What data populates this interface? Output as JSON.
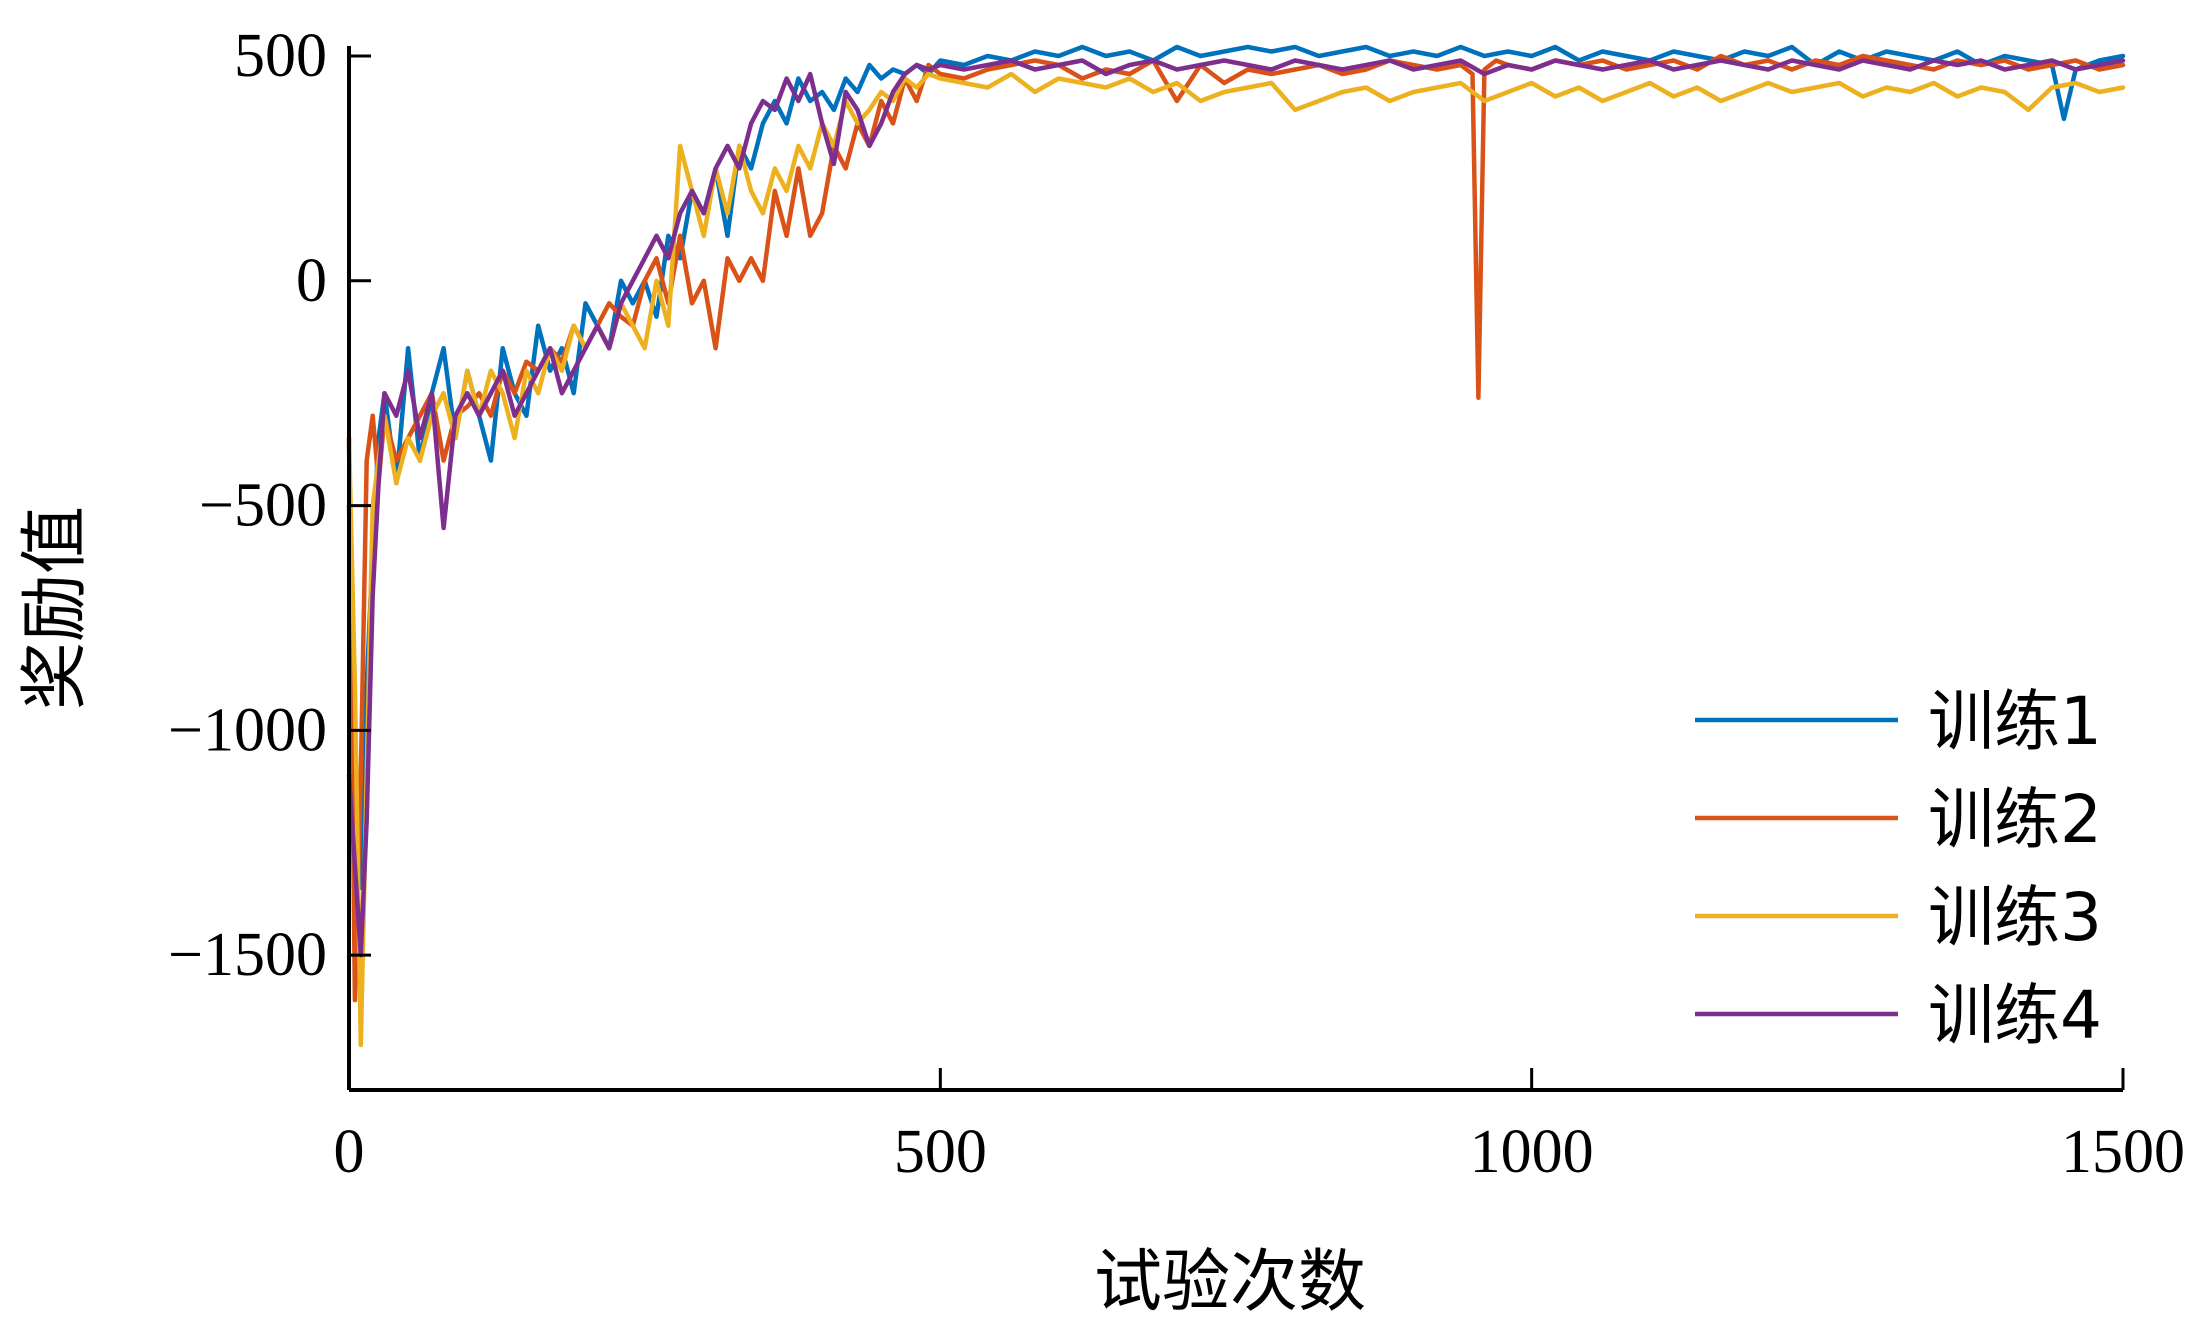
{
  "chart_data": {
    "type": "line",
    "title": "",
    "xlabel": "试验次数",
    "ylabel": "奖励值",
    "xlim": [
      0,
      1500
    ],
    "ylim": [
      -1800,
      500
    ],
    "xticks": [
      0,
      500,
      1000,
      1500
    ],
    "xtick_labels": [
      "0",
      "500",
      "1000",
      "1500"
    ],
    "yticks": [
      500,
      0,
      -500,
      -1000,
      -1500
    ],
    "ytick_labels": [
      "500",
      "0",
      "−500",
      "−1000",
      "−1500"
    ],
    "grid": false,
    "legend_position": "bottom-right",
    "series": [
      {
        "name": "训练1",
        "color": "#0072BD",
        "x": [
          0,
          5,
          10,
          15,
          20,
          25,
          30,
          40,
          50,
          60,
          70,
          80,
          90,
          100,
          110,
          120,
          130,
          140,
          150,
          160,
          170,
          180,
          190,
          200,
          210,
          220,
          230,
          240,
          250,
          260,
          270,
          280,
          290,
          300,
          310,
          320,
          330,
          340,
          350,
          360,
          370,
          380,
          390,
          400,
          410,
          420,
          430,
          440,
          450,
          460,
          470,
          480,
          490,
          500,
          520,
          540,
          560,
          580,
          600,
          620,
          640,
          660,
          680,
          700,
          720,
          740,
          760,
          780,
          800,
          820,
          840,
          860,
          880,
          900,
          920,
          940,
          960,
          980,
          1000,
          1020,
          1040,
          1060,
          1080,
          1100,
          1120,
          1140,
          1160,
          1180,
          1200,
          1220,
          1240,
          1260,
          1280,
          1300,
          1320,
          1340,
          1360,
          1380,
          1400,
          1420,
          1440,
          1450,
          1460,
          1480,
          1500
        ],
        "y": [
          -500,
          -1100,
          -1350,
          -900,
          -600,
          -350,
          -250,
          -450,
          -150,
          -400,
          -250,
          -150,
          -350,
          -200,
          -300,
          -400,
          -150,
          -250,
          -300,
          -100,
          -200,
          -150,
          -250,
          -50,
          -100,
          -150,
          0,
          -50,
          0,
          -80,
          100,
          50,
          200,
          150,
          250,
          100,
          300,
          250,
          350,
          400,
          350,
          450,
          400,
          420,
          380,
          450,
          420,
          480,
          450,
          470,
          460,
          480,
          460,
          490,
          480,
          500,
          490,
          510,
          500,
          520,
          500,
          510,
          490,
          520,
          500,
          510,
          520,
          510,
          520,
          500,
          510,
          520,
          500,
          510,
          500,
          520,
          500,
          510,
          500,
          520,
          490,
          510,
          500,
          490,
          510,
          500,
          490,
          510,
          500,
          520,
          480,
          510,
          490,
          510,
          500,
          490,
          510,
          480,
          500,
          490,
          480,
          360,
          470,
          490,
          500
        ]
      },
      {
        "name": "训练2",
        "color": "#D95319",
        "x": [
          0,
          5,
          10,
          15,
          20,
          25,
          30,
          40,
          50,
          60,
          70,
          80,
          90,
          100,
          110,
          120,
          130,
          140,
          150,
          160,
          170,
          180,
          190,
          200,
          210,
          220,
          230,
          240,
          250,
          260,
          270,
          280,
          290,
          300,
          310,
          320,
          330,
          340,
          350,
          360,
          370,
          380,
          390,
          400,
          410,
          420,
          430,
          440,
          450,
          460,
          470,
          480,
          490,
          500,
          520,
          540,
          560,
          580,
          600,
          620,
          640,
          660,
          680,
          700,
          720,
          740,
          760,
          780,
          800,
          820,
          840,
          860,
          880,
          900,
          920,
          940,
          950,
          955,
          960,
          965,
          970,
          980,
          1000,
          1020,
          1040,
          1060,
          1080,
          1100,
          1120,
          1140,
          1160,
          1180,
          1200,
          1220,
          1240,
          1260,
          1280,
          1300,
          1320,
          1340,
          1360,
          1380,
          1400,
          1420,
          1440,
          1460,
          1480,
          1500
        ],
        "y": [
          -350,
          -1600,
          -1100,
          -400,
          -300,
          -450,
          -300,
          -400,
          -350,
          -300,
          -250,
          -400,
          -300,
          -280,
          -250,
          -300,
          -200,
          -250,
          -180,
          -200,
          -150,
          -180,
          -100,
          -150,
          -100,
          -50,
          -80,
          -100,
          0,
          50,
          -50,
          100,
          -50,
          0,
          -150,
          50,
          0,
          50,
          0,
          200,
          100,
          250,
          100,
          150,
          300,
          250,
          350,
          300,
          400,
          350,
          450,
          400,
          480,
          460,
          450,
          470,
          480,
          490,
          480,
          450,
          470,
          460,
          490,
          400,
          480,
          440,
          470,
          460,
          470,
          480,
          460,
          470,
          490,
          480,
          470,
          480,
          460,
          -260,
          470,
          480,
          490,
          480,
          470,
          490,
          480,
          490,
          470,
          480,
          490,
          470,
          500,
          480,
          490,
          470,
          490,
          480,
          500,
          490,
          480,
          470,
          490,
          480,
          490,
          470,
          480,
          490,
          470,
          480
        ]
      },
      {
        "name": "训练3",
        "color": "#EDB120",
        "x": [
          0,
          5,
          10,
          15,
          20,
          25,
          30,
          40,
          50,
          60,
          70,
          80,
          90,
          100,
          110,
          120,
          130,
          140,
          150,
          160,
          170,
          180,
          190,
          200,
          210,
          220,
          230,
          240,
          250,
          260,
          270,
          280,
          290,
          300,
          310,
          320,
          330,
          340,
          350,
          360,
          370,
          380,
          390,
          400,
          410,
          420,
          430,
          440,
          450,
          460,
          470,
          480,
          490,
          500,
          520,
          540,
          560,
          580,
          600,
          620,
          640,
          660,
          680,
          700,
          720,
          740,
          760,
          780,
          800,
          820,
          840,
          860,
          880,
          900,
          920,
          940,
          960,
          980,
          1000,
          1020,
          1040,
          1060,
          1080,
          1100,
          1120,
          1140,
          1160,
          1180,
          1200,
          1220,
          1240,
          1260,
          1280,
          1300,
          1320,
          1340,
          1360,
          1380,
          1400,
          1420,
          1440,
          1460,
          1480,
          1500
        ],
        "y": [
          -350,
          -900,
          -1700,
          -1100,
          -500,
          -400,
          -300,
          -450,
          -350,
          -400,
          -300,
          -250,
          -350,
          -200,
          -300,
          -200,
          -250,
          -350,
          -200,
          -250,
          -150,
          -200,
          -100,
          -150,
          -100,
          -150,
          -50,
          -100,
          -150,
          0,
          -100,
          300,
          200,
          100,
          250,
          150,
          300,
          200,
          150,
          250,
          200,
          300,
          250,
          350,
          300,
          400,
          350,
          380,
          420,
          400,
          450,
          430,
          460,
          450,
          440,
          430,
          460,
          420,
          450,
          440,
          430,
          450,
          420,
          440,
          400,
          420,
          430,
          440,
          380,
          400,
          420,
          430,
          400,
          420,
          430,
          440,
          400,
          420,
          440,
          410,
          430,
          400,
          420,
          440,
          410,
          430,
          400,
          420,
          440,
          420,
          430,
          440,
          410,
          430,
          420,
          440,
          410,
          430,
          420,
          380,
          430,
          440,
          420,
          430
        ]
      },
      {
        "name": "训练4",
        "color": "#7E2F8E",
        "x": [
          0,
          5,
          10,
          15,
          20,
          25,
          30,
          40,
          50,
          60,
          70,
          80,
          90,
          100,
          110,
          120,
          130,
          140,
          150,
          160,
          170,
          180,
          190,
          200,
          210,
          220,
          230,
          240,
          250,
          260,
          270,
          280,
          290,
          300,
          310,
          320,
          330,
          340,
          350,
          360,
          370,
          380,
          390,
          400,
          410,
          420,
          430,
          440,
          450,
          460,
          470,
          480,
          490,
          500,
          520,
          540,
          560,
          580,
          600,
          620,
          640,
          660,
          680,
          700,
          720,
          740,
          760,
          780,
          800,
          820,
          840,
          860,
          880,
          900,
          920,
          940,
          960,
          980,
          1000,
          1020,
          1040,
          1060,
          1080,
          1100,
          1120,
          1140,
          1160,
          1180,
          1200,
          1220,
          1240,
          1260,
          1280,
          1300,
          1320,
          1340,
          1360,
          1380,
          1400,
          1420,
          1440,
          1460,
          1480,
          1500
        ],
        "y": [
          -1100,
          -1300,
          -1500,
          -1200,
          -700,
          -450,
          -250,
          -300,
          -200,
          -350,
          -250,
          -550,
          -300,
          -250,
          -300,
          -250,
          -200,
          -300,
          -250,
          -200,
          -150,
          -250,
          -200,
          -150,
          -100,
          -150,
          -50,
          0,
          50,
          100,
          50,
          150,
          200,
          150,
          250,
          300,
          250,
          350,
          400,
          380,
          450,
          400,
          460,
          350,
          260,
          420,
          380,
          300,
          350,
          420,
          460,
          480,
          470,
          480,
          470,
          480,
          490,
          470,
          480,
          490,
          460,
          480,
          490,
          470,
          480,
          490,
          480,
          470,
          490,
          480,
          470,
          480,
          490,
          470,
          480,
          490,
          460,
          480,
          470,
          490,
          480,
          470,
          480,
          490,
          470,
          480,
          490,
          480,
          470,
          490,
          480,
          470,
          490,
          480,
          470,
          490,
          480,
          490,
          470,
          480,
          490,
          470,
          480,
          490
        ]
      }
    ]
  }
}
